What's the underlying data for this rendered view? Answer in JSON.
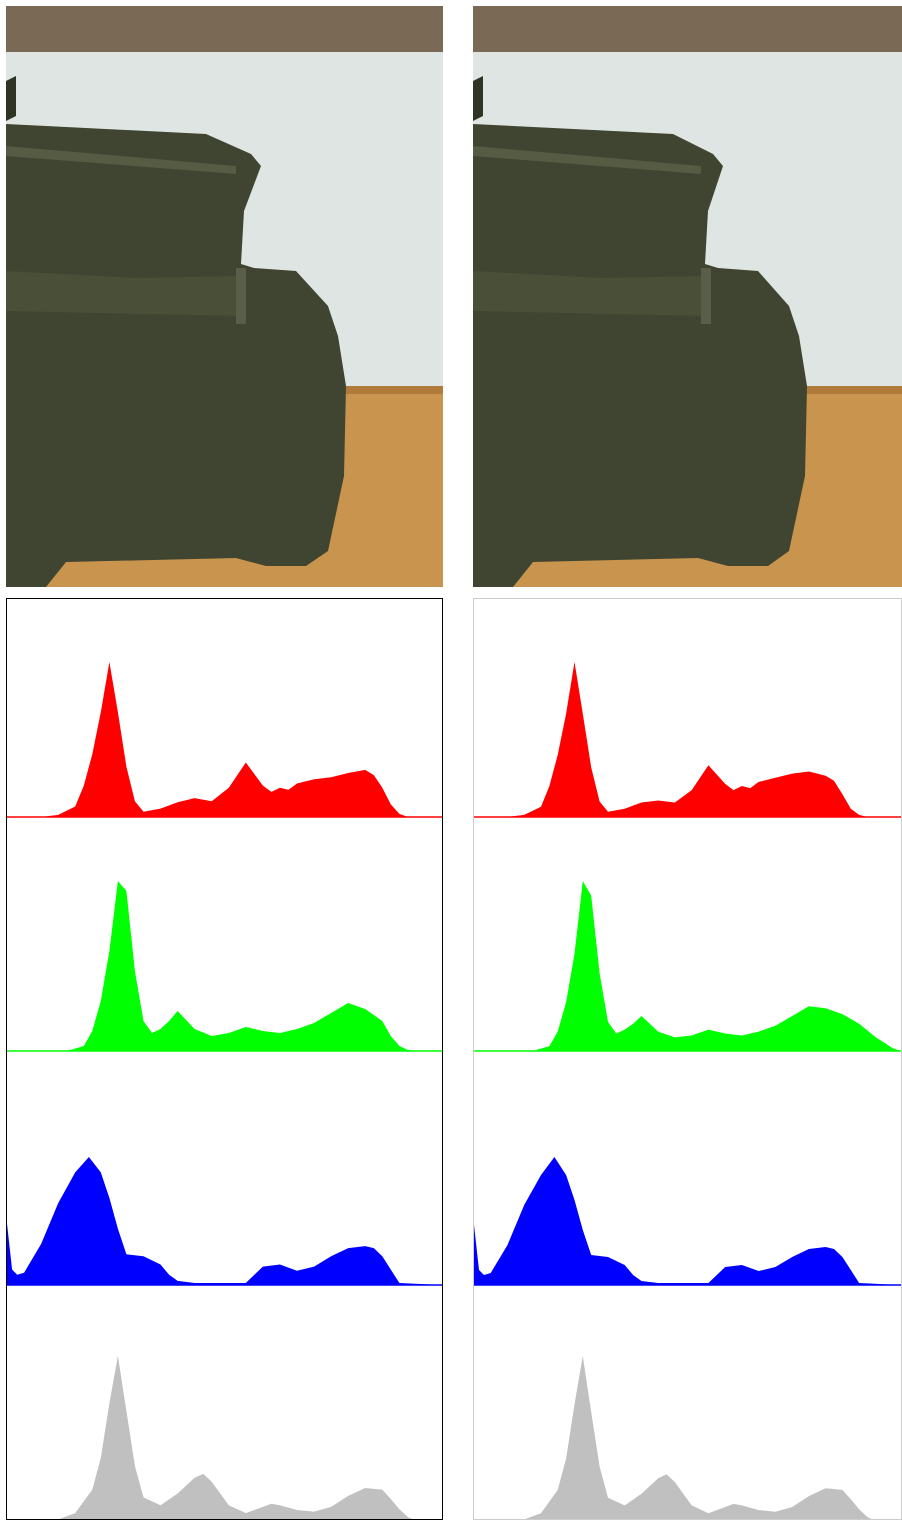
{
  "colors": {
    "red": "#ff0000",
    "green": "#00ff00",
    "blue": "#0000ff",
    "luminance": "#c0c0c0",
    "wall": "#dfe5e2",
    "wood": "#c9944e",
    "shelf_top": "#7a6a55",
    "object": "#3f4530"
  },
  "chart_data": [
    {
      "type": "area",
      "panel": "left",
      "xlim": [
        0,
        255
      ],
      "series": [
        {
          "channel": "red",
          "x": [
            0,
            20,
            30,
            40,
            45,
            50,
            55,
            60,
            65,
            70,
            75,
            80,
            90,
            100,
            110,
            120,
            130,
            140,
            150,
            155,
            160,
            165,
            170,
            180,
            190,
            200,
            210,
            215,
            220,
            225,
            230,
            235,
            240,
            255
          ],
          "values": [
            0,
            0,
            2,
            10,
            30,
            60,
            100,
            148,
            100,
            48,
            15,
            5,
            8,
            14,
            18,
            15,
            28,
            52,
            30,
            24,
            28,
            26,
            32,
            36,
            38,
            42,
            45,
            40,
            28,
            12,
            3,
            0,
            0,
            0
          ]
        },
        {
          "channel": "green",
          "x": [
            0,
            35,
            45,
            50,
            55,
            60,
            65,
            70,
            75,
            80,
            85,
            90,
            95,
            100,
            110,
            120,
            130,
            140,
            150,
            160,
            170,
            180,
            190,
            200,
            210,
            220,
            225,
            230,
            235,
            240,
            255
          ],
          "values": [
            0,
            0,
            5,
            20,
            50,
            100,
            170,
            160,
            80,
            30,
            18,
            22,
            30,
            40,
            22,
            15,
            18,
            24,
            20,
            18,
            22,
            28,
            38,
            48,
            42,
            30,
            15,
            5,
            1,
            0,
            0
          ]
        },
        {
          "channel": "blue",
          "x": [
            0,
            3,
            6,
            10,
            20,
            30,
            40,
            48,
            55,
            60,
            65,
            70,
            80,
            90,
            95,
            100,
            110,
            120,
            130,
            140,
            150,
            160,
            170,
            180,
            190,
            200,
            210,
            215,
            220,
            225,
            230,
            255
          ],
          "values": [
            60,
            15,
            10,
            12,
            40,
            80,
            110,
            125,
            110,
            85,
            55,
            30,
            28,
            20,
            10,
            4,
            2,
            2,
            2,
            2,
            18,
            20,
            14,
            18,
            28,
            36,
            38,
            36,
            28,
            15,
            2,
            0
          ]
        },
        {
          "channel": "luminance",
          "x": [
            0,
            20,
            30,
            40,
            50,
            55,
            60,
            65,
            70,
            75,
            80,
            90,
            100,
            110,
            115,
            120,
            130,
            140,
            150,
            155,
            160,
            170,
            180,
            190,
            200,
            210,
            220,
            225,
            230,
            235,
            240,
            255
          ],
          "values": [
            0,
            0,
            2,
            10,
            40,
            80,
            150,
            210,
            140,
            70,
            30,
            20,
            35,
            55,
            60,
            50,
            20,
            10,
            18,
            22,
            20,
            14,
            12,
            18,
            32,
            42,
            40,
            28,
            15,
            5,
            0,
            0
          ]
        }
      ]
    },
    {
      "type": "area",
      "panel": "right",
      "xlim": [
        0,
        255
      ],
      "series": [
        {
          "channel": "red",
          "x": [
            0,
            20,
            30,
            40,
            45,
            50,
            55,
            60,
            65,
            70,
            75,
            80,
            90,
            100,
            110,
            120,
            130,
            140,
            150,
            155,
            160,
            165,
            170,
            180,
            190,
            200,
            210,
            215,
            220,
            225,
            230,
            235,
            240,
            255
          ],
          "values": [
            0,
            0,
            2,
            10,
            30,
            60,
            100,
            150,
            100,
            48,
            15,
            5,
            8,
            14,
            16,
            14,
            26,
            50,
            32,
            26,
            30,
            28,
            34,
            38,
            42,
            44,
            40,
            35,
            22,
            8,
            2,
            0,
            0,
            0
          ]
        },
        {
          "channel": "green",
          "x": [
            0,
            35,
            45,
            50,
            55,
            60,
            65,
            70,
            75,
            80,
            85,
            90,
            95,
            100,
            110,
            120,
            130,
            140,
            150,
            160,
            170,
            180,
            190,
            200,
            210,
            220,
            230,
            240,
            250,
            255
          ],
          "values": [
            0,
            0,
            5,
            20,
            50,
            100,
            175,
            160,
            80,
            30,
            18,
            22,
            28,
            36,
            20,
            14,
            16,
            22,
            18,
            16,
            20,
            26,
            36,
            46,
            44,
            38,
            28,
            14,
            3,
            0
          ]
        },
        {
          "channel": "blue",
          "x": [
            0,
            3,
            6,
            10,
            20,
            30,
            40,
            48,
            55,
            60,
            65,
            70,
            80,
            90,
            95,
            100,
            110,
            120,
            130,
            140,
            150,
            160,
            170,
            180,
            190,
            200,
            210,
            215,
            220,
            225,
            230,
            255
          ],
          "values": [
            60,
            15,
            10,
            12,
            40,
            80,
            110,
            128,
            110,
            85,
            55,
            30,
            28,
            20,
            10,
            4,
            2,
            2,
            2,
            2,
            18,
            20,
            14,
            18,
            28,
            36,
            38,
            36,
            28,
            15,
            2,
            0
          ]
        },
        {
          "channel": "luminance",
          "x": [
            0,
            20,
            30,
            40,
            50,
            55,
            60,
            65,
            70,
            75,
            80,
            90,
            100,
            110,
            115,
            120,
            130,
            140,
            150,
            155,
            160,
            170,
            180,
            190,
            200,
            210,
            220,
            225,
            230,
            235,
            240,
            255
          ],
          "values": [
            0,
            0,
            2,
            10,
            40,
            80,
            150,
            212,
            140,
            70,
            30,
            20,
            35,
            55,
            60,
            50,
            20,
            10,
            18,
            22,
            20,
            14,
            12,
            18,
            32,
            42,
            40,
            28,
            15,
            5,
            0,
            0
          ]
        }
      ]
    }
  ]
}
